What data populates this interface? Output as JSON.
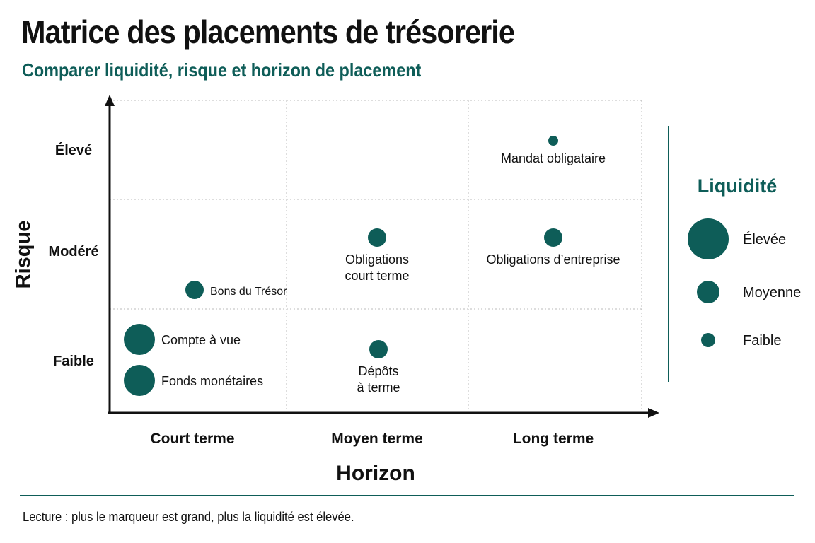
{
  "header": {
    "title": "Matrice des placements de trésorerie",
    "subtitle": "Comparer liquidité, risque et horizon de placement"
  },
  "footnote": "Lecture : plus le marqueur est grand, plus la liquidité est élevée.",
  "colors": {
    "marker": "#0e5d58",
    "grid": "#bbbbbb",
    "axis": "#111111"
  },
  "chart_data": {
    "type": "scatter",
    "title": "Matrice des placements de trésorerie",
    "subtitle": "Comparer liquidité, risque et horizon de placement",
    "xlabel": "Horizon",
    "ylabel": "Risque",
    "x_categories": [
      "Court terme",
      "Moyen terme",
      "Long terme"
    ],
    "y_categories": [
      "Faible",
      "Modéré",
      "Élevé"
    ],
    "grid": true,
    "legend": {
      "title": "Liquidité",
      "placement": "right",
      "levels": [
        {
          "label": "Élevée",
          "level": 3
        },
        {
          "label": "Moyenne",
          "level": 2
        },
        {
          "label": "Faible",
          "level": 1
        }
      ]
    },
    "points": [
      {
        "label": "Compte à vue",
        "x": "Court terme",
        "y": "Faible",
        "liquidity": 3
      },
      {
        "label": "Fonds monétaires",
        "x": "Court terme",
        "y": "Faible",
        "liquidity": 3
      },
      {
        "label": "Bons du Trésor",
        "x": "Court terme",
        "y": "Modéré",
        "liquidity": 2
      },
      {
        "label": "Obligations court terme",
        "x": "Moyen terme",
        "y": "Modéré",
        "liquidity": 2
      },
      {
        "label": "Dépôts à terme",
        "x": "Moyen terme",
        "y": "Faible",
        "liquidity": 2
      },
      {
        "label": "Obligations d’entreprise",
        "x": "Long terme",
        "y": "Modéré",
        "liquidity": 2
      },
      {
        "label": "Mandat obligataire",
        "x": "Long terme",
        "y": "Élevé",
        "liquidity": 1
      }
    ]
  }
}
